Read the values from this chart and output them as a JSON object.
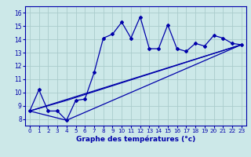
{
  "xlabel": "Graphe des températures (°c)",
  "bg_color": "#cce8e8",
  "grid_color": "#aacccc",
  "line_color": "#0000aa",
  "xlim": [
    -0.5,
    23.5
  ],
  "ylim": [
    7.5,
    16.5
  ],
  "xticks": [
    0,
    1,
    2,
    3,
    4,
    5,
    6,
    7,
    8,
    9,
    10,
    11,
    12,
    13,
    14,
    15,
    16,
    17,
    18,
    19,
    20,
    21,
    22,
    23
  ],
  "yticks": [
    8,
    9,
    10,
    11,
    12,
    13,
    14,
    15,
    16
  ],
  "main_line_x": [
    0,
    1,
    2,
    3,
    4,
    5,
    6,
    7,
    8,
    9,
    10,
    11,
    12,
    13,
    14,
    15,
    16,
    17,
    18,
    19,
    20,
    21,
    22,
    23
  ],
  "main_line_y": [
    8.6,
    10.2,
    8.6,
    8.6,
    7.9,
    9.4,
    9.5,
    11.5,
    14.1,
    14.4,
    15.3,
    14.1,
    15.7,
    13.3,
    13.3,
    15.1,
    13.3,
    13.1,
    13.7,
    13.5,
    14.3,
    14.1,
    13.7,
    13.6
  ],
  "line2_x": [
    0,
    23
  ],
  "line2_y": [
    8.6,
    13.6
  ],
  "line3_x": [
    0,
    4,
    23
  ],
  "line3_y": [
    8.6,
    7.9,
    13.6
  ],
  "line4_x": [
    0,
    4,
    23
  ],
  "line4_y": [
    8.6,
    9.4,
    13.6
  ]
}
